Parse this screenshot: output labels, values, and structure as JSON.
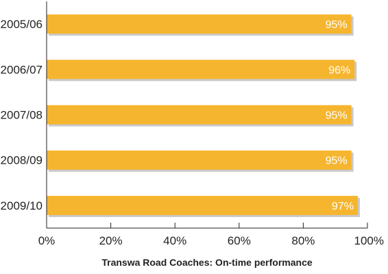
{
  "chart_data": {
    "type": "bar",
    "orientation": "horizontal",
    "categories": [
      "2005/06",
      "2006/07",
      "2007/08",
      "2008/09",
      "2009/10"
    ],
    "values": [
      95,
      96,
      95,
      95,
      97
    ],
    "data_labels": [
      "95%",
      "96%",
      "95%",
      "95%",
      "97%"
    ],
    "title": "Transwa Road Coaches: On-time performance",
    "xlabel": "",
    "ylabel": "",
    "xlim": [
      0,
      100
    ],
    "x_ticks": [
      0,
      20,
      40,
      60,
      80,
      100
    ],
    "x_tick_labels": [
      "0%",
      "20%",
      "40%",
      "60%",
      "80%",
      "100%"
    ],
    "grid": false,
    "legend": "none"
  },
  "colors": {
    "bar": "#f6b52e",
    "bar_shadow": "#c9c9c9",
    "axis": "#231f20"
  }
}
